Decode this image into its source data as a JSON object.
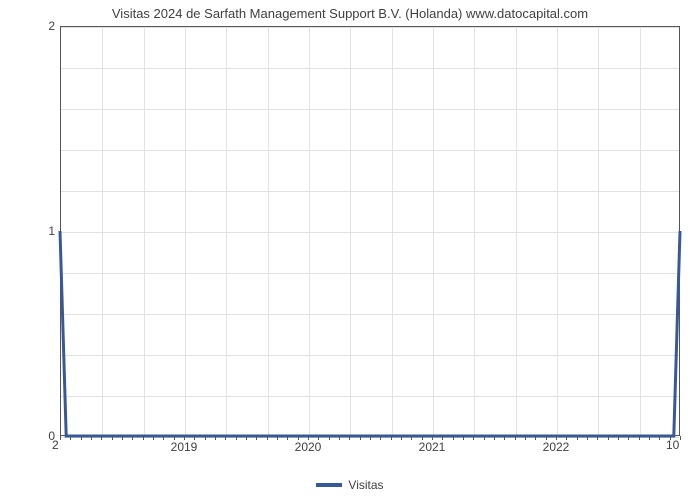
{
  "chart": {
    "type": "line",
    "title": "Visitas 2024 de Sarfath Management Support B.V. (Holanda) www.datocapital.com",
    "title_fontsize": 13,
    "title_color": "#404040",
    "background_color": "#ffffff",
    "plot_border_color": "#555555",
    "grid_color": "#e2e2e2",
    "xlim": [
      2018,
      2023
    ],
    "ylim": [
      0,
      2
    ],
    "x_major_ticks": [
      2019,
      2020,
      2021,
      2022
    ],
    "x_minor_count": 15,
    "y_major_ticks": [
      0,
      1,
      2
    ],
    "y_minor_grid": [
      0.2,
      0.4,
      0.6,
      0.8,
      1.2,
      1.4,
      1.6,
      1.8
    ],
    "x_minor_grid_count": 15,
    "series": [
      {
        "name": "Visitas",
        "color": "#36599a",
        "line_width": 3,
        "x": [
          2018.0,
          2018.05,
          2022.95,
          2023.0
        ],
        "y": [
          1.0,
          0.0,
          0.0,
          1.0
        ]
      }
    ],
    "corner_labels": {
      "bottom_left": "2",
      "bottom_right": "10"
    },
    "legend": {
      "label": "Visitas",
      "color": "#36599a"
    },
    "axis_label_fontsize": 12,
    "axis_label_color": "#404040"
  }
}
